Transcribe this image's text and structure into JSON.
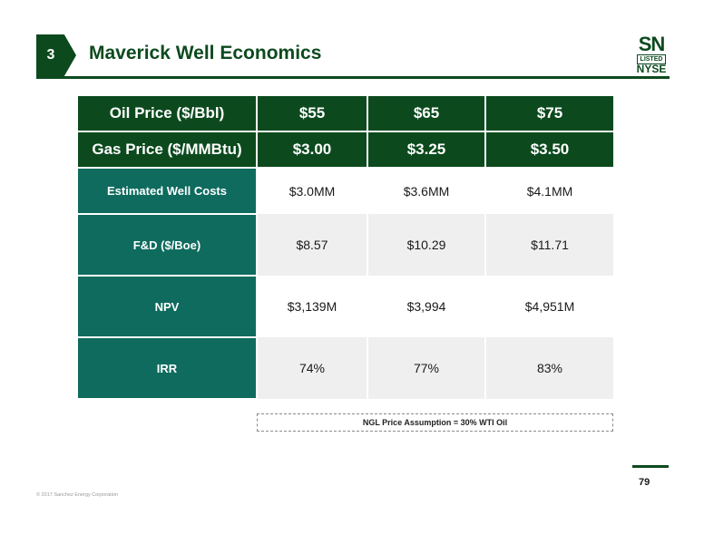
{
  "header": {
    "section_number": "3",
    "title": "Maverick Well Economics"
  },
  "logo": {
    "ticker": "SN",
    "listed": "LISTED",
    "exchange": "NYSE"
  },
  "table": {
    "header_rows": [
      {
        "label": "Oil Price ($/Bbl)",
        "values": [
          "$55",
          "$65",
          "$75"
        ]
      },
      {
        "label": "Gas Price ($/MMBtu)",
        "values": [
          "$3.00",
          "$3.25",
          "$3.50"
        ]
      }
    ],
    "rows": [
      {
        "label": "Estimated Well Costs",
        "values": [
          "$3.0MM",
          "$3.6MM",
          "$4.1MM"
        ]
      },
      {
        "label": "F&D ($/Boe)",
        "values": [
          "$8.57",
          "$10.29",
          "$11.71"
        ]
      },
      {
        "label": "NPV",
        "values": [
          "$3,139M",
          "$3,994",
          "$4,951M"
        ]
      },
      {
        "label": "IRR",
        "values": [
          "74%",
          "77%",
          "83%"
        ]
      }
    ]
  },
  "note": "NGL Price Assumption = 30% WTI Oil",
  "footer": {
    "page_number": "79",
    "copyright": "© 2017 Sanchez Energy Corporation"
  },
  "colors": {
    "dark_green": "#0c4a1e",
    "teal": "#0e6b5e",
    "row_grey": "#efefef"
  }
}
